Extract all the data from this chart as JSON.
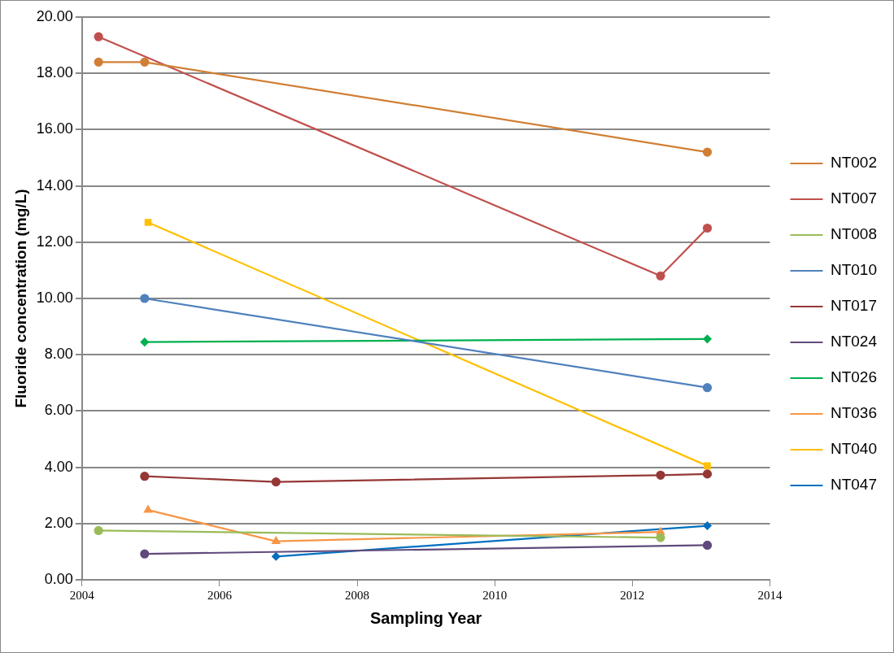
{
  "chart_data": {
    "type": "line",
    "xlabel": "Sampling Year",
    "ylabel": "Fluoride concentration (mg/L)",
    "xlim": [
      2004,
      2014
    ],
    "xticks": [
      2004,
      2006,
      2008,
      2010,
      2012,
      2014
    ],
    "ylim": [
      0,
      20
    ],
    "yticks": [
      {
        "value": 0,
        "label": "0.00"
      },
      {
        "value": 2,
        "label": "2.00"
      },
      {
        "value": 4,
        "label": "4.00"
      },
      {
        "value": 6,
        "label": "6.00"
      },
      {
        "value": 8,
        "label": "8.00"
      },
      {
        "value": 10,
        "label": "10.00"
      },
      {
        "value": 12,
        "label": "12.00"
      },
      {
        "value": 14,
        "label": "14.00"
      },
      {
        "value": 16,
        "label": "16.00"
      },
      {
        "value": 18,
        "label": "18.00"
      },
      {
        "value": 20,
        "label": "20.00"
      }
    ],
    "grid": "y",
    "legend": "right",
    "line_style": "solid",
    "series": [
      {
        "name": "NT002",
        "color": "#d07f35",
        "marker": "circle",
        "x": [
          2004.24,
          2004.91,
          2013.09
        ],
        "values": [
          18.4,
          18.4,
          15.2
        ]
      },
      {
        "name": "NT007",
        "color": "#c0504d",
        "marker": "circle",
        "x": [
          2004.24,
          2012.41,
          2013.09
        ],
        "values": [
          19.3,
          10.8,
          12.5
        ]
      },
      {
        "name": "NT008",
        "color": "#9bbb59",
        "marker": "circle",
        "x": [
          2004.24,
          2012.41
        ],
        "values": [
          1.75,
          1.5
        ]
      },
      {
        "name": "NT010",
        "color": "#4f81bd",
        "marker": "circle",
        "x": [
          2004.91,
          2013.09
        ],
        "values": [
          10.0,
          6.83
        ]
      },
      {
        "name": "NT017",
        "color": "#953735",
        "marker": "circle",
        "x": [
          2004.91,
          2006.82,
          2012.41,
          2013.09
        ],
        "values": [
          3.68,
          3.48,
          3.72,
          3.76
        ]
      },
      {
        "name": "NT024",
        "color": "#604a7b",
        "marker": "circle",
        "x": [
          2004.91,
          2013.09
        ],
        "values": [
          0.92,
          1.23
        ]
      },
      {
        "name": "NT026",
        "color": "#00b050",
        "marker": "diamond",
        "x": [
          2004.91,
          2013.09
        ],
        "values": [
          8.45,
          8.56
        ]
      },
      {
        "name": "NT036",
        "color": "#f79646",
        "marker": "triangle",
        "x": [
          2004.96,
          2006.82,
          2012.41
        ],
        "values": [
          2.48,
          1.37,
          1.7
        ]
      },
      {
        "name": "NT040",
        "color": "#ffc000",
        "marker": "square",
        "x": [
          2004.96,
          2013.09
        ],
        "values": [
          12.7,
          4.05
        ]
      },
      {
        "name": "NT047",
        "color": "#0070c0",
        "marker": "diamond",
        "x": [
          2006.82,
          2013.09
        ],
        "values": [
          0.83,
          1.92
        ]
      }
    ]
  }
}
